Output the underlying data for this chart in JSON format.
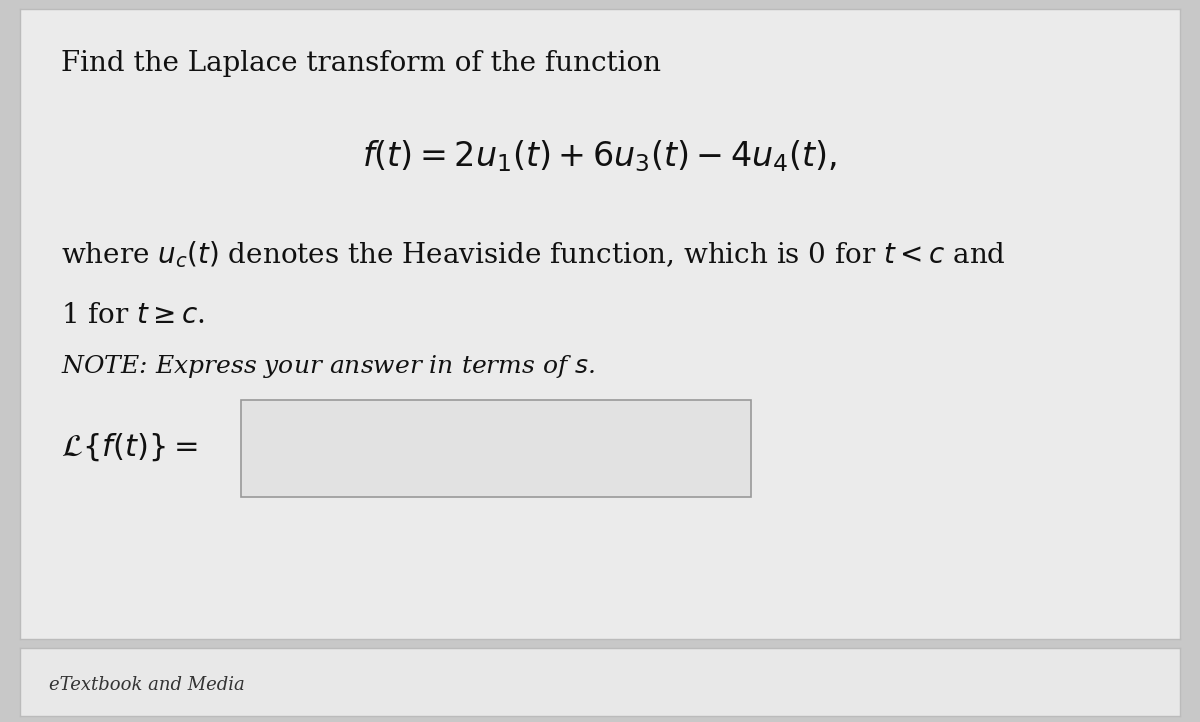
{
  "bg_color": "#c8c8c8",
  "main_panel_color": "#ebebeb",
  "main_panel_border_color": "#bbbbbb",
  "bottom_panel_color": "#e8e8e8",
  "bottom_panel_border_color": "#bbbbbb",
  "input_box_color": "#e2e2e2",
  "input_box_border_color": "#999999",
  "line1": "Find the Laplace transform of the function",
  "line2": "$f(t) = 2u_1(t) + 6u_3(t) - 4u_4(t),$",
  "line3_part1": "where $u_c(t)$ denotes the Heaviside function, which is 0 for $t < c$ and",
  "line3_part2": "1 for $t \\geq c$.",
  "line4": "NOTE: Express your answer in terms of $s$.",
  "line5": "$\\mathcal{L}\\{f(t)\\} =$",
  "bottom_label": "eTextbook and Media",
  "font_size_main": 20,
  "font_size_formula": 24,
  "font_size_note": 18,
  "font_size_answer": 22,
  "font_size_bottom": 13
}
